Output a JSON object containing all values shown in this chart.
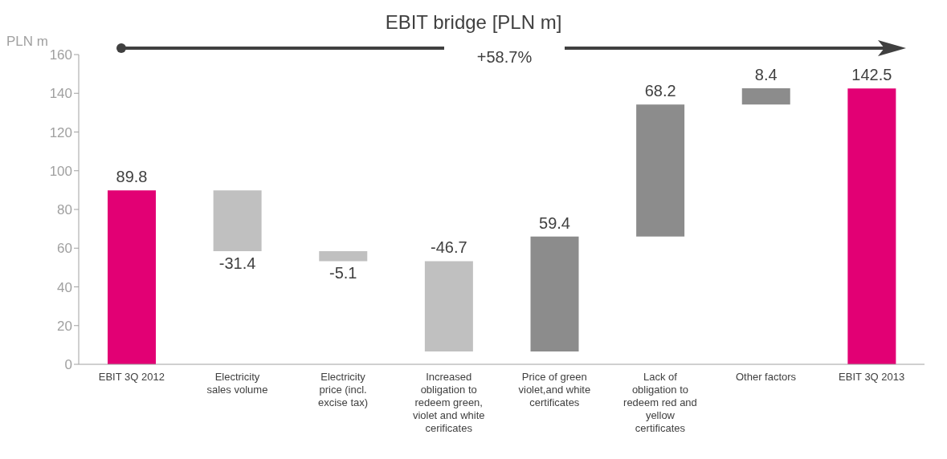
{
  "chart_data": {
    "type": "bar",
    "title": "EBIT bridge [PLN m]",
    "ylabel": "PLN m",
    "categories": [
      "EBIT 3Q 2012",
      "Electricity sales volume",
      "Electricity price (incl. excise tax)",
      "Increased obligation to redeem green, violet and white cerificates",
      "Price of green violet,and white certificates",
      "Lack of obligation to redeem red and yellow certificates",
      "Other factors",
      "EBIT 3Q 2013"
    ],
    "values": [
      89.8,
      -31.4,
      -5.1,
      -46.7,
      59.4,
      68.2,
      8.4,
      142.5
    ],
    "base": [
      0,
      89.8,
      58.4,
      53.3,
      6.6,
      66,
      134.2,
      0
    ],
    "colors": [
      "#e20074",
      "#c0c0c0",
      "#c0c0c0",
      "#c0c0c0",
      "#8c8c8c",
      "#8c8c8c",
      "#8c8c8c",
      "#e20074"
    ],
    "data_labels": true,
    "ylim": [
      0,
      160
    ],
    "yticks": [
      0,
      20,
      40,
      60,
      80,
      100,
      120,
      140,
      160
    ],
    "grid": false,
    "legend": false,
    "annotations": [
      "+58.7%"
    ]
  }
}
